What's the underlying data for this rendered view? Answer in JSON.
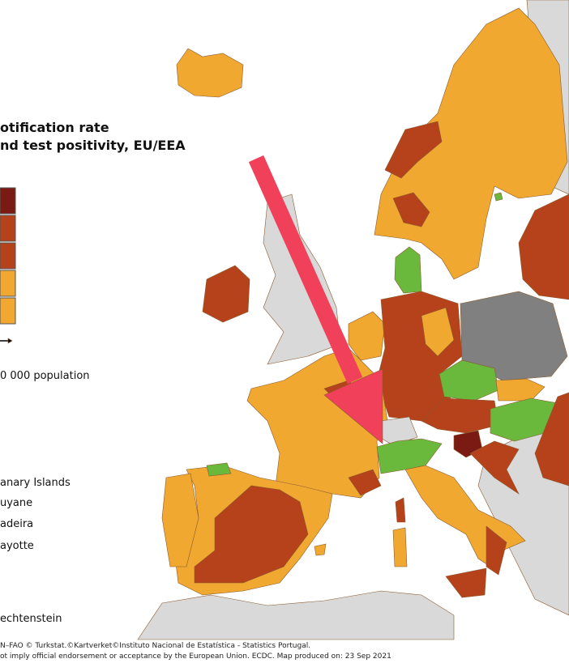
{
  "legend": {
    "title": [
      "otification rate",
      "nd test positivity, EU/EEA"
    ],
    "population_note": "0 000 population",
    "insets": [
      "anary Islands",
      "uyane",
      "adeira",
      "ayotte",
      "echtenstein"
    ]
  },
  "footer": [
    "N–FAO © Turkstat.©Kartverket©Instituto Nacional de Estatística - Statistics Portugal.",
    "ot imply official endorsement or acceptance by the European Union. ECDC. Map produced on: 23 Sep 2021"
  ]
}
